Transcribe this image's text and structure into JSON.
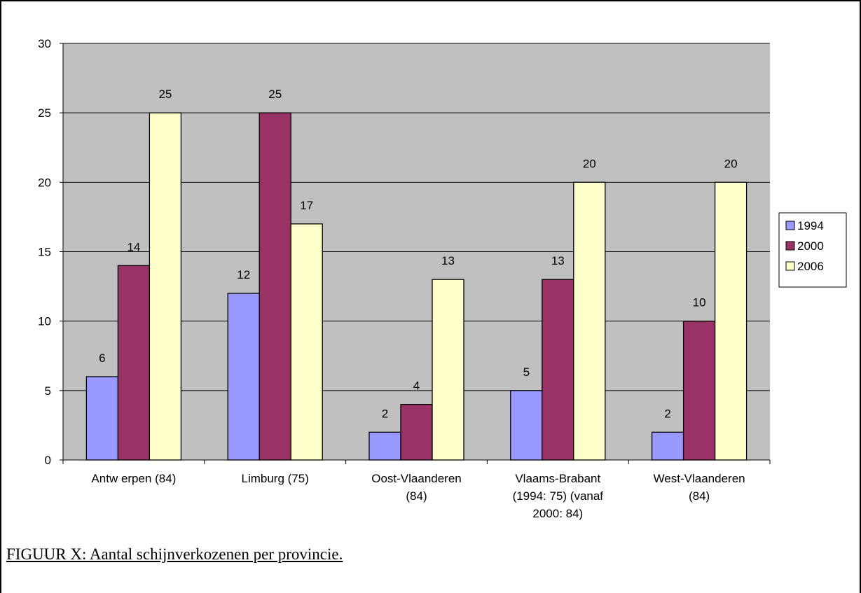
{
  "chart_data": {
    "type": "bar",
    "categories": [
      [
        "Antw erpen (84)"
      ],
      [
        "Limburg (75)"
      ],
      [
        "Oost-Vlaanderen",
        "(84)"
      ],
      [
        "Vlaams-Brabant",
        "(1994: 75) (vanaf",
        "2000: 84)"
      ],
      [
        "West-Vlaanderen",
        "(84)"
      ]
    ],
    "series": [
      {
        "name": "1994",
        "color": "#9999ff",
        "values": [
          6,
          12,
          2,
          5,
          2
        ]
      },
      {
        "name": "2000",
        "color": "#993366",
        "values": [
          14,
          25,
          4,
          13,
          10
        ]
      },
      {
        "name": "2006",
        "color": "#ffffcc",
        "values": [
          25,
          17,
          13,
          20,
          20
        ]
      }
    ],
    "ylim": [
      0,
      30
    ],
    "yticks": [
      0,
      5,
      10,
      15,
      20,
      25,
      30
    ],
    "plot_background": "#c0c0c0",
    "grid": true,
    "legend": "right",
    "data_labels": true
  },
  "caption": "FIGUUR X: Aantal schijnverkozenen per provincie."
}
